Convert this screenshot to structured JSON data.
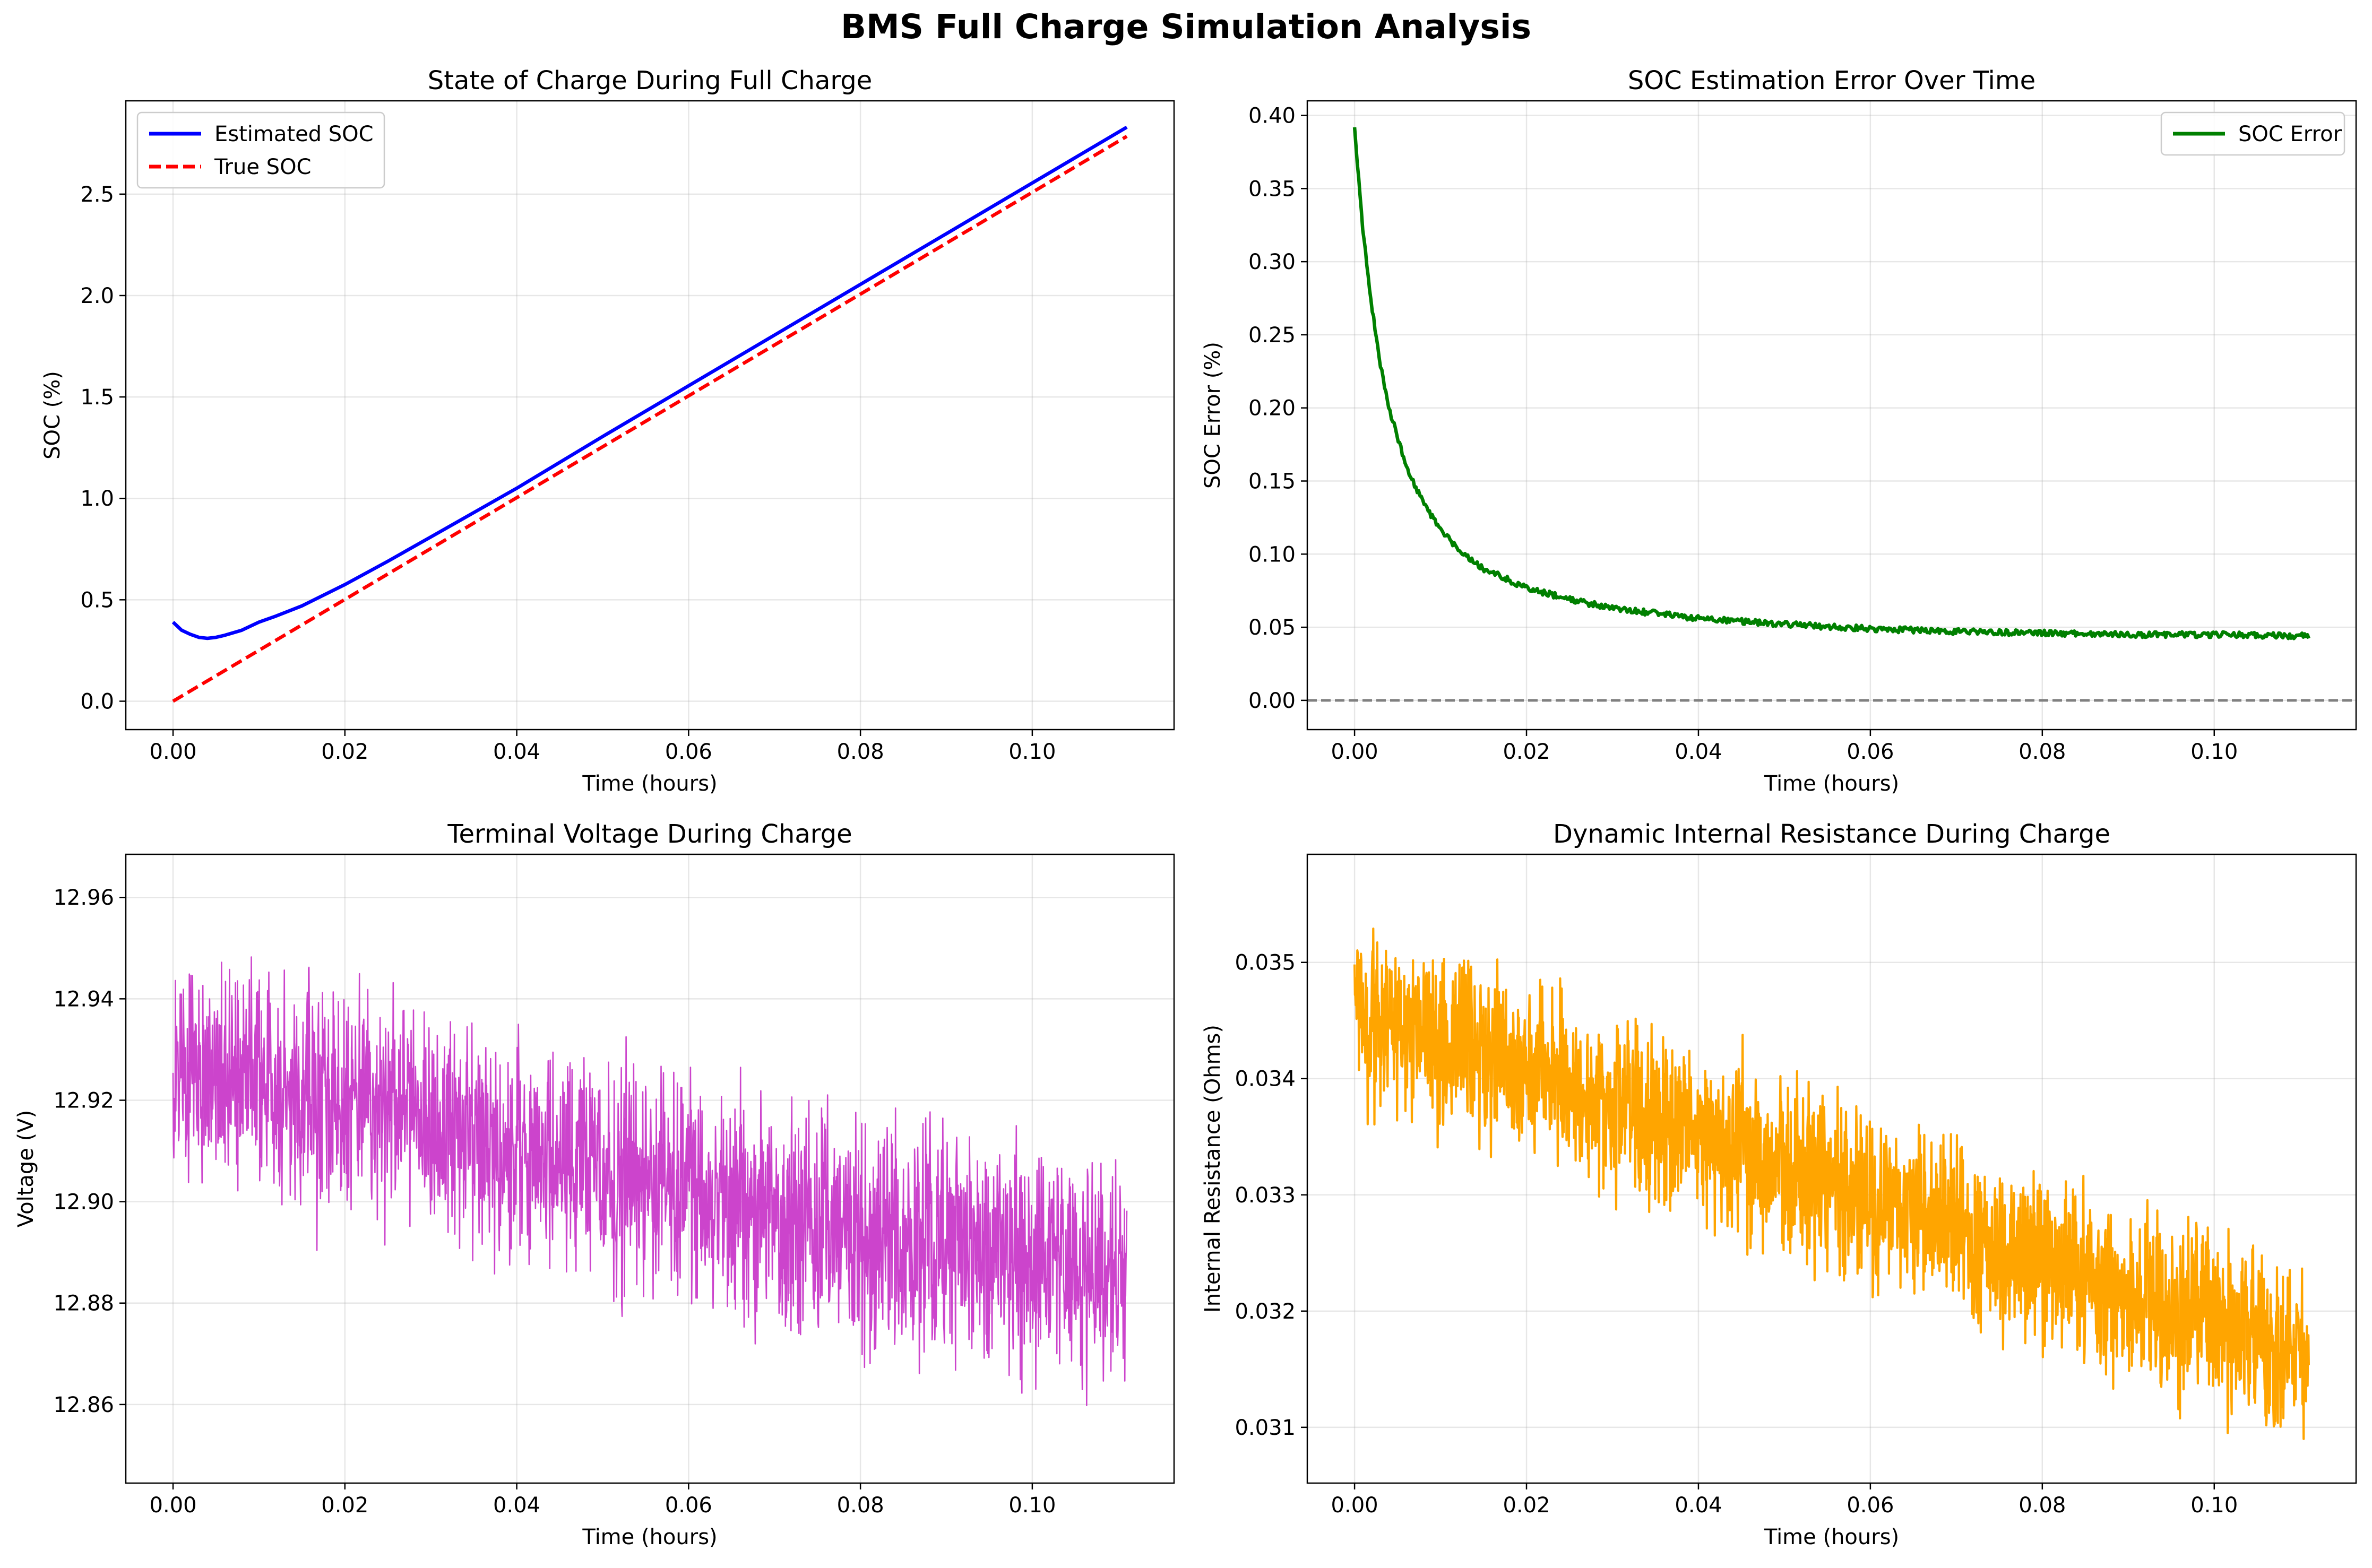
{
  "figure": {
    "title": "BMS Full Charge Simulation Analysis"
  },
  "chart_data": [
    {
      "type": "line",
      "title": "State of Charge During Full Charge",
      "xlabel": "Time (hours)",
      "ylabel": "SOC (%)",
      "xlim": [
        -0.0055,
        0.1165
      ],
      "ylim": [
        -0.14,
        2.96
      ],
      "xticks": [
        0.0,
        0.02,
        0.04,
        0.06,
        0.08,
        0.1
      ],
      "xtick_labels": [
        "0.00",
        "0.02",
        "0.04",
        "0.06",
        "0.08",
        "0.10"
      ],
      "yticks": [
        0.0,
        0.5,
        1.0,
        1.5,
        2.0,
        2.5
      ],
      "ytick_labels": [
        "0.0",
        "0.5",
        "1.0",
        "1.5",
        "2.0",
        "2.5"
      ],
      "grid": true,
      "legend": "top-left",
      "series": [
        {
          "name": "Estimated SOC",
          "color": "#0000ff",
          "style": "solid",
          "x": [
            0.0,
            0.001,
            0.002,
            0.003,
            0.004,
            0.005,
            0.006,
            0.008,
            0.01,
            0.012,
            0.015,
            0.02,
            0.025,
            0.03,
            0.04,
            0.05,
            0.06,
            0.07,
            0.08,
            0.09,
            0.1,
            0.111
          ],
          "y": [
            0.39,
            0.35,
            0.33,
            0.315,
            0.31,
            0.315,
            0.325,
            0.35,
            0.39,
            0.42,
            0.47,
            0.575,
            0.69,
            0.81,
            1.05,
            1.305,
            1.555,
            1.805,
            2.055,
            2.305,
            2.555,
            2.83
          ]
        },
        {
          "name": "True SOC",
          "color": "#ff0000",
          "style": "dashed",
          "x": [
            0.0,
            0.111
          ],
          "y": [
            0.0,
            2.785
          ]
        }
      ]
    },
    {
      "type": "line",
      "title": "SOC Estimation Error Over Time",
      "xlabel": "Time (hours)",
      "ylabel": "SOC Error (%)",
      "xlim": [
        -0.0055,
        0.1165
      ],
      "ylim": [
        -0.02,
        0.41
      ],
      "xticks": [
        0.0,
        0.02,
        0.04,
        0.06,
        0.08,
        0.1
      ],
      "xtick_labels": [
        "0.00",
        "0.02",
        "0.04",
        "0.06",
        "0.08",
        "0.10"
      ],
      "yticks": [
        0.0,
        0.05,
        0.1,
        0.15,
        0.2,
        0.25,
        0.3,
        0.35,
        0.4
      ],
      "ytick_labels": [
        "0.00",
        "0.05",
        "0.10",
        "0.15",
        "0.20",
        "0.25",
        "0.30",
        "0.35",
        "0.40"
      ],
      "grid": true,
      "legend": "top-right",
      "reference_line": {
        "y": 0.0,
        "color": "#808080",
        "style": "dashed"
      },
      "series": [
        {
          "name": "SOC Error",
          "color": "#008000",
          "style": "solid",
          "x": [
            0.0,
            0.001,
            0.002,
            0.003,
            0.004,
            0.005,
            0.006,
            0.008,
            0.01,
            0.012,
            0.015,
            0.02,
            0.025,
            0.03,
            0.04,
            0.05,
            0.06,
            0.07,
            0.08,
            0.09,
            0.1,
            0.111
          ],
          "y": [
            0.39,
            0.32,
            0.27,
            0.23,
            0.2,
            0.18,
            0.16,
            0.135,
            0.117,
            0.104,
            0.09,
            0.077,
            0.069,
            0.063,
            0.056,
            0.052,
            0.049,
            0.047,
            0.046,
            0.045,
            0.045,
            0.044
          ]
        }
      ]
    },
    {
      "type": "line",
      "title": "Terminal Voltage During Charge",
      "xlabel": "Time (hours)",
      "ylabel": "Voltage (V)",
      "xlim": [
        -0.0055,
        0.1165
      ],
      "ylim": [
        12.8445,
        12.9685
      ],
      "xticks": [
        0.0,
        0.02,
        0.04,
        0.06,
        0.08,
        0.1
      ],
      "xtick_labels": [
        "0.00",
        "0.02",
        "0.04",
        "0.06",
        "0.08",
        "0.10"
      ],
      "yticks": [
        12.86,
        12.88,
        12.9,
        12.92,
        12.94,
        12.96
      ],
      "ytick_labels": [
        "12.86",
        "12.88",
        "12.90",
        "12.92",
        "12.94",
        "12.96"
      ],
      "grid": true,
      "series": [
        {
          "color": "#cc44cc",
          "style": "solid",
          "noisy": true,
          "x": [
            0.0,
            0.02,
            0.04,
            0.06,
            0.08,
            0.1,
            0.111
          ],
          "y": [
            12.925,
            12.919,
            12.91,
            12.902,
            12.894,
            12.889,
            12.886
          ],
          "spread": 0.042
        }
      ]
    },
    {
      "type": "line",
      "title": "Dynamic Internal Resistance During Charge",
      "xlabel": "Time (hours)",
      "ylabel": "Internal Resistance (Ohms)",
      "xlim": [
        -0.0055,
        0.1165
      ],
      "ylim": [
        0.03052,
        0.03593
      ],
      "xticks": [
        0.0,
        0.02,
        0.04,
        0.06,
        0.08,
        0.1
      ],
      "xtick_labels": [
        "0.00",
        "0.02",
        "0.04",
        "0.06",
        "0.08",
        "0.10"
      ],
      "yticks": [
        0.031,
        0.032,
        0.033,
        0.034,
        0.035
      ],
      "ytick_labels": [
        "0.031",
        "0.032",
        "0.033",
        "0.034",
        "0.035"
      ],
      "grid": true,
      "series": [
        {
          "color": "#ffa500",
          "style": "solid",
          "noisy": true,
          "x": [
            0.0,
            0.111
          ],
          "y": [
            0.0346,
            0.0316
          ],
          "spread": 0.0014
        }
      ]
    }
  ]
}
